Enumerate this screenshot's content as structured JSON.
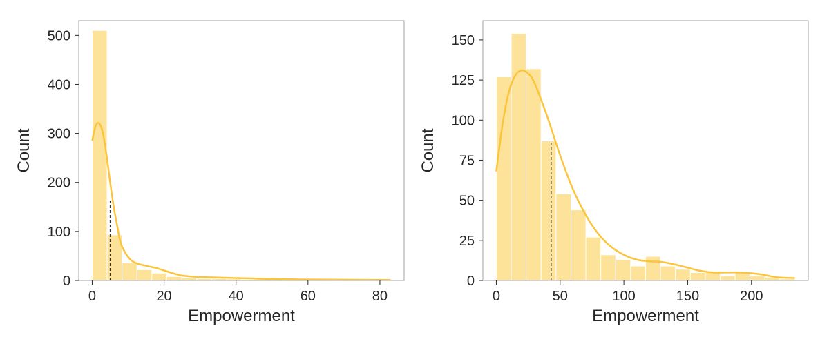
{
  "chart_data": [
    {
      "type": "histogram",
      "xlabel": "Empowerment",
      "ylabel": "Count",
      "xlim": [
        0,
        83
      ],
      "ylim": [
        0,
        530
      ],
      "xticks": [
        0,
        20,
        40,
        60,
        80
      ],
      "yticks": [
        0,
        100,
        200,
        300,
        400,
        500
      ],
      "bin_edges": [
        0,
        4.15,
        8.3,
        12.45,
        16.6,
        20.75,
        24.9,
        29.05,
        33.2,
        37.35,
        41.5,
        45.65,
        49.8,
        53.95,
        58.1,
        62.25,
        66.4,
        70.55,
        74.7,
        78.85,
        83
      ],
      "counts": [
        510,
        93,
        36,
        22,
        15,
        8,
        5,
        4,
        4,
        3,
        2,
        3,
        2,
        1,
        1,
        1,
        1,
        1,
        1,
        1
      ],
      "kde": {
        "x": [
          0,
          1,
          2,
          3,
          4,
          5,
          6,
          7,
          8,
          10,
          12,
          15,
          18,
          21,
          25,
          30,
          35,
          40,
          45,
          50,
          60,
          70,
          83
        ],
        "y": [
          285,
          316,
          320,
          300,
          255,
          200,
          150,
          110,
          75,
          48,
          36,
          30,
          25,
          18,
          10,
          7,
          6,
          5,
          4,
          3,
          2,
          1.5,
          1
        ]
      },
      "vline": {
        "x": 5.0,
        "y_top": 165
      },
      "grid": false,
      "color": "#fbc43a"
    },
    {
      "type": "histogram",
      "xlabel": "Empowerment",
      "ylabel": "Count",
      "xlim": [
        0,
        234
      ],
      "ylim": [
        0,
        162
      ],
      "xticks": [
        0,
        50,
        100,
        150,
        200
      ],
      "yticks": [
        0,
        25,
        50,
        75,
        100,
        125,
        150
      ],
      "bin_edges": [
        0,
        11.7,
        23.4,
        35.1,
        46.8,
        58.5,
        70.2,
        81.9,
        93.6,
        105.3,
        117,
        128.7,
        140.4,
        152.1,
        163.8,
        175.5,
        187.2,
        198.9,
        210.6,
        222.3,
        234
      ],
      "counts": [
        127,
        154,
        132,
        87,
        54,
        44,
        27,
        16,
        13,
        9,
        15,
        9,
        7,
        5,
        5,
        3,
        5,
        3,
        2,
        1
      ],
      "kde": {
        "x": [
          0,
          5,
          10,
          15,
          20,
          25,
          30,
          40,
          50,
          60,
          70,
          80,
          90,
          100,
          110,
          120,
          130,
          140,
          150,
          160,
          170,
          180,
          190,
          200,
          210,
          220,
          234
        ],
        "y": [
          68,
          98,
          118,
          128,
          131,
          129,
          123,
          102,
          78,
          57,
          41,
          29,
          21,
          16,
          13,
          12,
          11.5,
          10,
          8,
          6,
          5,
          5,
          5,
          4.5,
          3.5,
          2,
          1.5
        ]
      },
      "vline": {
        "x": 43.0,
        "y_top": 86
      },
      "grid": false,
      "color": "#fbc43a"
    }
  ]
}
